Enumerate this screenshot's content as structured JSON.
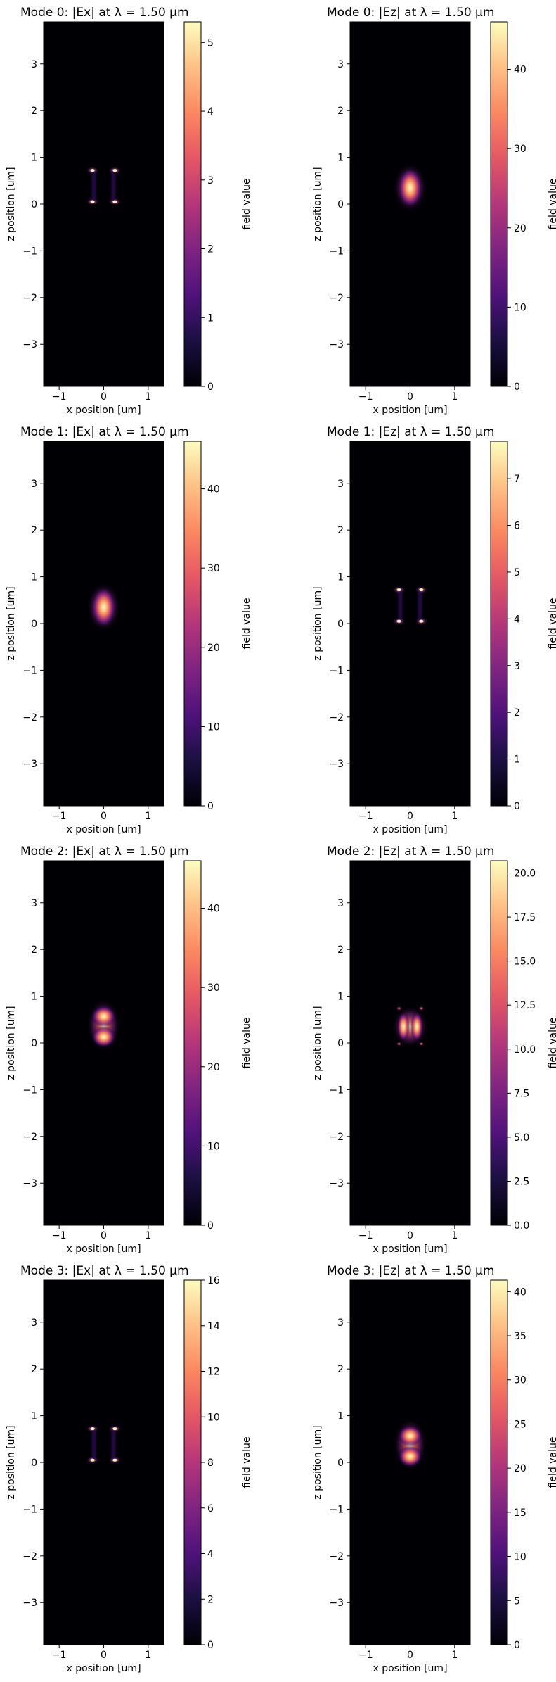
{
  "chart_data": [
    {
      "type": "heatmap",
      "title": "Mode 0: |Ex| at λ = 1.50 µm",
      "xlabel": "x position [um]",
      "ylabel": "z position [um]",
      "xlim": [
        -1.35,
        1.35
      ],
      "ylim": [
        -3.9,
        3.9
      ],
      "xticks": [
        "−1",
        "0",
        "1"
      ],
      "yticks": [
        "3",
        "2",
        "1",
        "0",
        "−1",
        "−2",
        "−3"
      ],
      "colorbar_label": "field value",
      "colorbar_range": [
        0,
        5.3
      ],
      "colorbar_ticks": [
        "0",
        "1",
        "2",
        "3",
        "4",
        "5"
      ],
      "colormap": "magma",
      "field_pattern": "edges",
      "peak": 5.3
    },
    {
      "type": "heatmap",
      "title": "Mode 0: |Ez| at λ = 1.50 µm",
      "xlabel": "x position [um]",
      "ylabel": "z position [um]",
      "xlim": [
        -1.35,
        1.35
      ],
      "ylim": [
        -3.9,
        3.9
      ],
      "xticks": [
        "−1",
        "0",
        "1"
      ],
      "yticks": [
        "3",
        "2",
        "1",
        "0",
        "−1",
        "−2",
        "−3"
      ],
      "colorbar_label": "field value",
      "colorbar_range": [
        0,
        46
      ],
      "colorbar_ticks": [
        "0",
        "10",
        "20",
        "30",
        "40"
      ],
      "colormap": "magma",
      "field_pattern": "blob",
      "peak": 46
    },
    {
      "type": "heatmap",
      "title": "Mode 1: |Ex| at λ = 1.50 µm",
      "xlabel": "x position [um]",
      "ylabel": "z position [um]",
      "xlim": [
        -1.35,
        1.35
      ],
      "ylim": [
        -3.9,
        3.9
      ],
      "xticks": [
        "−1",
        "0",
        "1"
      ],
      "yticks": [
        "3",
        "2",
        "1",
        "0",
        "−1",
        "−2",
        "−3"
      ],
      "colorbar_label": "field value",
      "colorbar_range": [
        0,
        46
      ],
      "colorbar_ticks": [
        "0",
        "10",
        "20",
        "30",
        "40"
      ],
      "colormap": "magma",
      "field_pattern": "blob",
      "peak": 46
    },
    {
      "type": "heatmap",
      "title": "Mode 1: |Ez| at λ = 1.50 µm",
      "xlabel": "x position [um]",
      "ylabel": "z position [um]",
      "xlim": [
        -1.35,
        1.35
      ],
      "ylim": [
        -3.9,
        3.9
      ],
      "xticks": [
        "−1",
        "0",
        "1"
      ],
      "yticks": [
        "3",
        "2",
        "1",
        "0",
        "−1",
        "−2",
        "−3"
      ],
      "colorbar_label": "field value",
      "colorbar_range": [
        0,
        7.8
      ],
      "colorbar_ticks": [
        "0",
        "1",
        "2",
        "3",
        "4",
        "5",
        "6",
        "7"
      ],
      "colormap": "magma",
      "field_pattern": "edges",
      "peak": 7.8
    },
    {
      "type": "heatmap",
      "title": "Mode 2: |Ex| at λ = 1.50 µm",
      "xlabel": "x position [um]",
      "ylabel": "z position [um]",
      "xlim": [
        -1.35,
        1.35
      ],
      "ylim": [
        -3.9,
        3.9
      ],
      "xticks": [
        "−1",
        "0",
        "1"
      ],
      "yticks": [
        "3",
        "2",
        "1",
        "0",
        "−1",
        "−2",
        "−3"
      ],
      "colorbar_label": "field value",
      "colorbar_range": [
        0,
        46
      ],
      "colorbar_ticks": [
        "0",
        "10",
        "20",
        "30",
        "40"
      ],
      "colormap": "magma",
      "field_pattern": "two-lobes-vertical",
      "peak": 46
    },
    {
      "type": "heatmap",
      "title": "Mode 2: |Ez| at λ = 1.50 µm",
      "xlabel": "x position [um]",
      "ylabel": "z position [um]",
      "xlim": [
        -1.35,
        1.35
      ],
      "ylim": [
        -3.9,
        3.9
      ],
      "xticks": [
        "−1",
        "0",
        "1"
      ],
      "yticks": [
        "3",
        "2",
        "1",
        "0",
        "−1",
        "−2",
        "−3"
      ],
      "colorbar_label": "field value",
      "colorbar_range": [
        0,
        20.7
      ],
      "colorbar_ticks": [
        "0.0",
        "2.5",
        "5.0",
        "7.5",
        "10.0",
        "12.5",
        "15.0",
        "17.5",
        "20.0"
      ],
      "colormap": "magma",
      "field_pattern": "two-lobes-horizontal",
      "peak": 20.7
    },
    {
      "type": "heatmap",
      "title": "Mode 3: |Ex| at λ = 1.50 µm",
      "xlabel": "x position [um]",
      "ylabel": "z position [um]",
      "xlim": [
        -1.35,
        1.35
      ],
      "ylim": [
        -3.9,
        3.9
      ],
      "xticks": [
        "−1",
        "0",
        "1"
      ],
      "yticks": [
        "3",
        "2",
        "1",
        "0",
        "−1",
        "−2",
        "−3"
      ],
      "colorbar_label": "field value",
      "colorbar_range": [
        0,
        16
      ],
      "colorbar_ticks": [
        "0",
        "2",
        "4",
        "6",
        "8",
        "10",
        "12",
        "14",
        "16"
      ],
      "colormap": "magma",
      "field_pattern": "edges",
      "peak": 16
    },
    {
      "type": "heatmap",
      "title": "Mode 3: |Ez| at λ = 1.50 µm",
      "xlabel": "x position [um]",
      "ylabel": "z position [um]",
      "xlim": [
        -1.35,
        1.35
      ],
      "ylim": [
        -3.9,
        3.9
      ],
      "xticks": [
        "−1",
        "0",
        "1"
      ],
      "yticks": [
        "3",
        "2",
        "1",
        "0",
        "−1",
        "−2",
        "−3"
      ],
      "colorbar_label": "field value",
      "colorbar_range": [
        0,
        41.3
      ],
      "colorbar_ticks": [
        "0",
        "5",
        "10",
        "15",
        "20",
        "25",
        "30",
        "35",
        "40"
      ],
      "colormap": "magma",
      "field_pattern": "two-lobes-vertical",
      "peak": 41.3
    }
  ],
  "colors": {
    "background_low": "#000004",
    "mid": "#8c2981",
    "high": "#fcfdbf",
    "frame": "#000000"
  }
}
